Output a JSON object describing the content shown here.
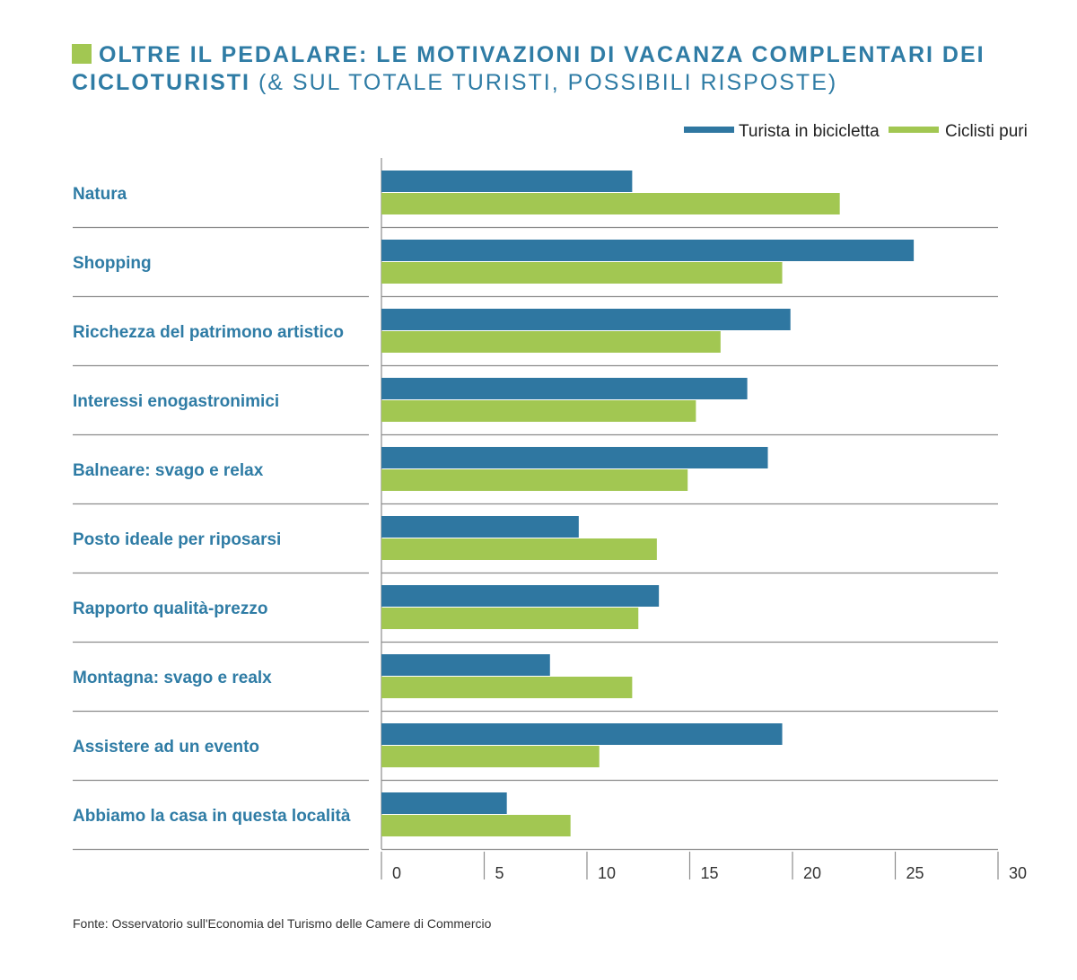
{
  "title": {
    "bold": "OLTRE IL PEDALARE: LE MOTIVAZIONI DI VACANZA COMPLENTARI DEI CICLOTURISTI",
    "normal": "(& SUL TOTALE TURISTI, POSSIBILI RISPOSTE)"
  },
  "source": "Fonte: Osservatorio sull'Economia del Turismo delle Camere di Commercio",
  "colors": {
    "series_1": "#2f77a1",
    "series_2": "#a2c752",
    "label": "#2f7ca5",
    "grid": "#8c8c8c"
  },
  "chart_data": {
    "type": "bar",
    "orientation": "horizontal",
    "categories": [
      "Natura",
      "Shopping",
      "Ricchezza del patrimono artistico",
      "Interessi enogastronimici",
      "Balneare: svago e relax",
      "Posto ideale per riposarsi",
      "Rapporto qualità-prezzo",
      "Montagna: svago e realx",
      "Assistere ad un evento",
      "Abbiamo la casa in questa località"
    ],
    "series": [
      {
        "name": "Turista in bicicletta",
        "values": [
          12.2,
          25.9,
          19.9,
          17.8,
          18.8,
          9.6,
          13.5,
          8.2,
          19.5,
          6.1
        ]
      },
      {
        "name": "Ciclisti puri",
        "values": [
          22.3,
          19.5,
          16.5,
          15.3,
          14.9,
          13.4,
          12.5,
          12.2,
          10.6,
          9.2
        ]
      }
    ],
    "xlim": [
      0,
      30
    ],
    "xticks": [
      0,
      5,
      10,
      15,
      20,
      25,
      30
    ],
    "legend_position": "top-right",
    "grid": false
  }
}
